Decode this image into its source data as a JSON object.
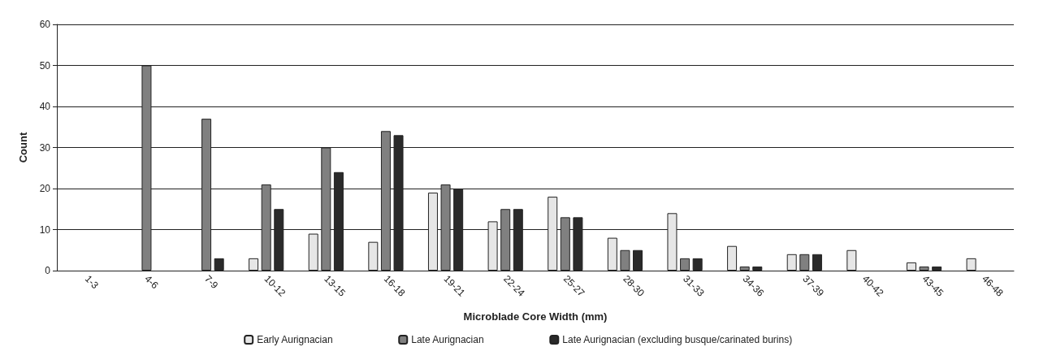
{
  "chart_data": {
    "type": "bar",
    "xlabel": "Microblade Core Width (mm)",
    "ylabel": "Count",
    "categories": [
      "1-3",
      "4-6",
      "7-9",
      "10-12",
      "13-15",
      "16-18",
      "19-21",
      "22-24",
      "25-27",
      "28-30",
      "31-33",
      "34-36",
      "37-39",
      "40-42",
      "43-45",
      "46-48"
    ],
    "series": [
      {
        "name": "Early Aurignacian",
        "color": "#e6e6e6",
        "values": [
          null,
          null,
          null,
          3,
          9,
          7,
          19,
          12,
          18,
          8,
          14,
          6,
          4,
          5,
          2,
          3
        ]
      },
      {
        "name": "Late Aurignacian",
        "color": "#808080",
        "values": [
          null,
          50,
          37,
          21,
          30,
          34,
          21,
          15,
          13,
          5,
          3,
          1,
          4,
          null,
          1,
          null
        ]
      },
      {
        "name": "Late Aurignacian (excluding busque/carinated burins)",
        "color": "#2a2a2a",
        "values": [
          null,
          null,
          3,
          15,
          24,
          33,
          20,
          15,
          13,
          5,
          3,
          1,
          4,
          null,
          1,
          null
        ]
      }
    ],
    "ylim": [
      0,
      60
    ],
    "yticks": [
      0,
      10,
      20,
      30,
      40,
      50,
      60
    ],
    "grid": "y",
    "legend": "bottom"
  }
}
